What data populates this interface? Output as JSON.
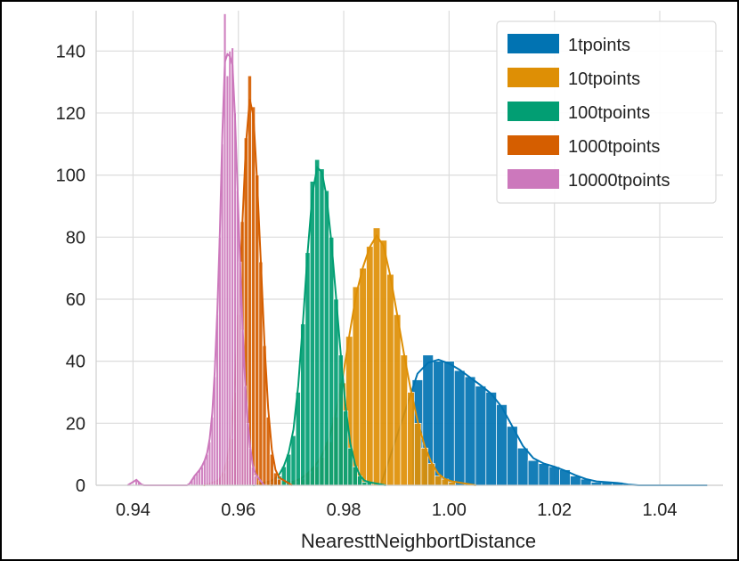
{
  "chart_data": {
    "type": "histogram",
    "title": "",
    "xlabel": "NearesttNeighbortDistance",
    "ylabel": "",
    "xlim": [
      0.933,
      1.052
    ],
    "ylim": [
      0,
      153
    ],
    "xticks": [
      0.94,
      0.96,
      0.98,
      1.0,
      1.02,
      1.04
    ],
    "xtick_labels": [
      "0.94",
      "0.96",
      "0.98",
      "1.00",
      "1.02",
      "1.04"
    ],
    "yticks": [
      0,
      20,
      40,
      60,
      80,
      100,
      120,
      140
    ],
    "ytick_labels": [
      "0",
      "20",
      "40",
      "60",
      "80",
      "100",
      "120",
      "140"
    ],
    "grid": true,
    "legend_position": "top-right",
    "series": [
      {
        "name": "1tpoints",
        "color": "#0173b2",
        "bin_start": 0.993,
        "bin_width": 0.002,
        "values": [
          34,
          42,
          40,
          40,
          37,
          35,
          32,
          30,
          26,
          19,
          12,
          8,
          7,
          6,
          5,
          3,
          2,
          1,
          1,
          1,
          0,
          0,
          0,
          0,
          0
        ]
      },
      {
        "name": "10tpoints",
        "color": "#de8f05",
        "bin_start": 0.97,
        "bin_width": 0.0013,
        "values": [
          1,
          2,
          4,
          6,
          9,
          14,
          22,
          33,
          48,
          64,
          70,
          77,
          83,
          79,
          68,
          55,
          42,
          30,
          20,
          12,
          7,
          3,
          2,
          1
        ]
      },
      {
        "name": "100tpoints",
        "color": "#029e73",
        "bin_start": 0.9655,
        "bin_width": 0.0009,
        "values": [
          1,
          2,
          3,
          6,
          10,
          16,
          30,
          52,
          75,
          98,
          105,
          102,
          95,
          80,
          60,
          42,
          24,
          12,
          6,
          3,
          1,
          1
        ]
      },
      {
        "name": "1000tpoints",
        "color": "#d55e00",
        "bin_start": 0.9555,
        "bin_width": 0.0007,
        "values": [
          1,
          2,
          4,
          8,
          15,
          30,
          55,
          85,
          112,
          132,
          122,
          100,
          72,
          45,
          22,
          10,
          4,
          2
        ]
      },
      {
        "name": "10000tpoints",
        "color": "#cc78bc",
        "bin_start": 0.9404,
        "bin_width": 0.00048,
        "values": [
          2,
          1,
          0,
          0,
          0,
          0,
          0,
          0,
          0,
          0,
          0,
          0,
          0,
          0,
          0,
          0,
          0,
          0,
          0,
          0,
          0,
          0,
          2,
          3,
          4,
          5,
          6,
          8,
          10,
          14,
          22,
          35,
          55,
          80,
          110,
          152,
          132,
          140,
          141,
          120,
          95,
          72,
          50,
          32,
          20,
          12,
          6,
          3
        ]
      }
    ]
  }
}
